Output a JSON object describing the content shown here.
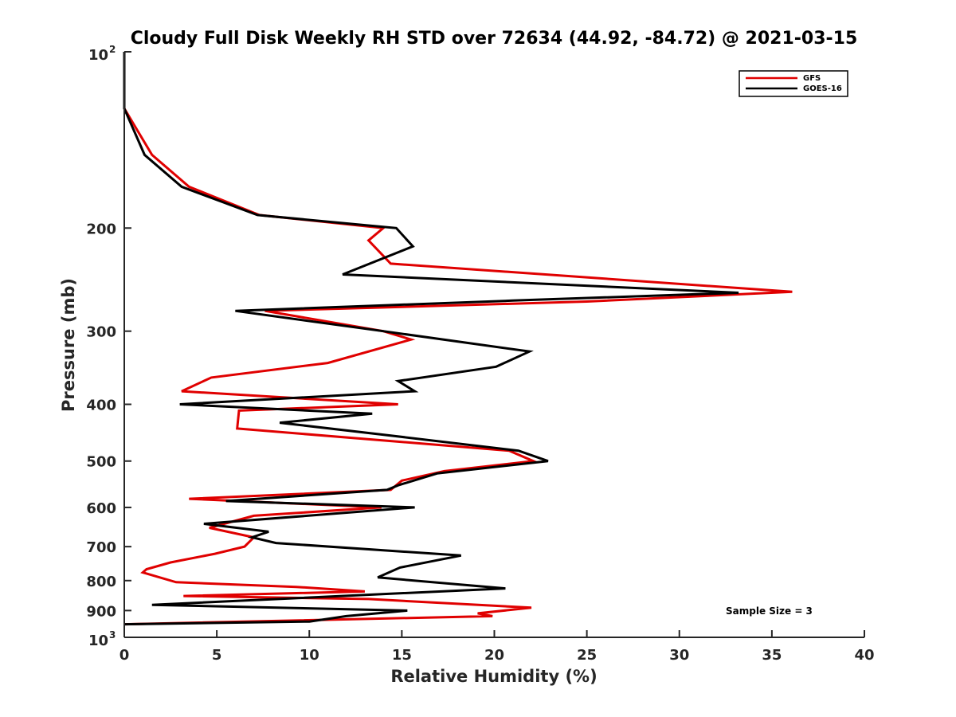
{
  "chart_data": {
    "type": "line",
    "title": "Cloudy Full Disk Weekly RH STD over 72634 (44.92, -84.72) @ 2021-03-15",
    "xlabel": "Relative Humidity (%)",
    "ylabel": "Pressure (mb)",
    "xlim": [
      0,
      40
    ],
    "ylim": [
      100,
      1000
    ],
    "y_scale": "log",
    "y_reversed": true,
    "x_ticks": [
      "0",
      "5",
      "10",
      "15",
      "20",
      "25",
      "30",
      "35",
      "40"
    ],
    "y_ticks": [
      {
        "value": 100,
        "base": "10",
        "exp": "2"
      },
      {
        "value": 200,
        "label": "200"
      },
      {
        "value": 300,
        "label": "300"
      },
      {
        "value": 400,
        "label": "400"
      },
      {
        "value": 500,
        "label": "500"
      },
      {
        "value": 600,
        "label": "600"
      },
      {
        "value": 700,
        "label": "700"
      },
      {
        "value": 800,
        "label": "800"
      },
      {
        "value": 900,
        "label": "900"
      },
      {
        "value": 1000,
        "base": "10",
        "exp": "3"
      }
    ],
    "legend_position": "top-right",
    "grid": false,
    "annotation": "Sample Size = 3",
    "series": [
      {
        "name": "GFS",
        "color": "#e00000",
        "points": [
          [
            0.0,
            100
          ],
          [
            0.0,
            125
          ],
          [
            1.5,
            150
          ],
          [
            3.5,
            170
          ],
          [
            7.3,
            190
          ],
          [
            14.0,
            200
          ],
          [
            13.2,
            210
          ],
          [
            14.4,
            230
          ],
          [
            36.1,
            257
          ],
          [
            25.0,
            267
          ],
          [
            7.6,
            277
          ],
          [
            14.0,
            300
          ],
          [
            15.5,
            310
          ],
          [
            11.0,
            340
          ],
          [
            4.7,
            360
          ],
          [
            3.1,
            380
          ],
          [
            14.8,
            400
          ],
          [
            6.2,
            410
          ],
          [
            6.1,
            440
          ],
          [
            20.8,
            480
          ],
          [
            22.1,
            500
          ],
          [
            17.3,
            520
          ],
          [
            15.0,
            540
          ],
          [
            14.4,
            560
          ],
          [
            3.5,
            580
          ],
          [
            13.9,
            600
          ],
          [
            7.0,
            620
          ],
          [
            4.6,
            650
          ],
          [
            7.0,
            675
          ],
          [
            6.5,
            700
          ],
          [
            4.9,
            720
          ],
          [
            2.5,
            745
          ],
          [
            1.2,
            765
          ],
          [
            1.0,
            775
          ],
          [
            2.8,
            805
          ],
          [
            9.3,
            820
          ],
          [
            13.0,
            835
          ],
          [
            3.2,
            850
          ],
          [
            13.2,
            860
          ],
          [
            22.0,
            890
          ],
          [
            19.1,
            910
          ],
          [
            19.9,
            920
          ],
          [
            0.0,
            950
          ]
        ]
      },
      {
        "name": "GOES-16",
        "color": "#000000",
        "points": [
          [
            0.0,
            100
          ],
          [
            0.0,
            125
          ],
          [
            1.1,
            150
          ],
          [
            3.1,
            170
          ],
          [
            7.2,
            190
          ],
          [
            14.7,
            200
          ],
          [
            15.6,
            215
          ],
          [
            11.8,
            240
          ],
          [
            33.2,
            258
          ],
          [
            21.0,
            266
          ],
          [
            6.0,
            277
          ],
          [
            14.0,
            300
          ],
          [
            21.9,
            325
          ],
          [
            20.1,
            345
          ],
          [
            14.8,
            365
          ],
          [
            15.7,
            380
          ],
          [
            3.0,
            400
          ],
          [
            13.4,
            415
          ],
          [
            8.4,
            430
          ],
          [
            13.8,
            450
          ],
          [
            21.3,
            480
          ],
          [
            22.9,
            500
          ],
          [
            16.9,
            525
          ],
          [
            14.8,
            550
          ],
          [
            14.2,
            560
          ],
          [
            5.5,
            585
          ],
          [
            15.7,
            600
          ],
          [
            4.3,
            640
          ],
          [
            7.8,
            660
          ],
          [
            6.9,
            675
          ],
          [
            8.2,
            690
          ],
          [
            18.2,
            725
          ],
          [
            14.9,
            760
          ],
          [
            13.7,
            790
          ],
          [
            20.6,
            825
          ],
          [
            1.5,
            880
          ],
          [
            15.3,
            900
          ],
          [
            12.0,
            920
          ],
          [
            10.0,
            940
          ],
          [
            0.0,
            950
          ]
        ]
      }
    ]
  }
}
